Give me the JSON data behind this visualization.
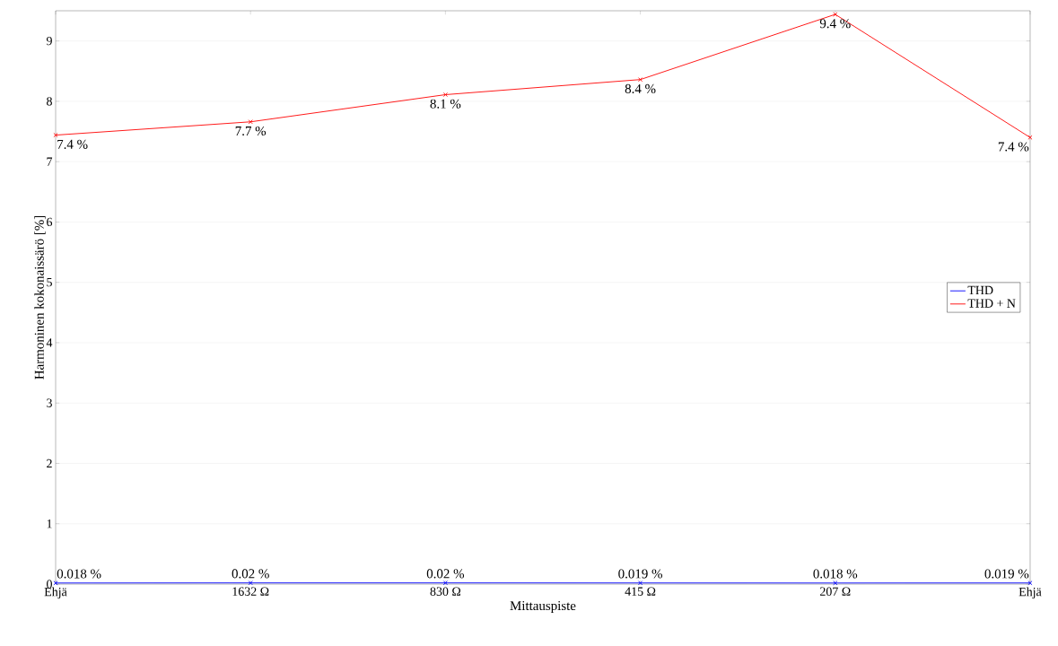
{
  "chart_data": {
    "type": "line",
    "xlabel": "Mittauspiste",
    "ylabel": "Harmoninen kokonaissärö [%]",
    "categories": [
      "Ehjä",
      "1632 Ω",
      "830 Ω",
      "415 Ω",
      "207 Ω",
      "Ehjä"
    ],
    "series": [
      {
        "name": "THD",
        "color": "#0000ff",
        "values": [
          0.018,
          0.02,
          0.02,
          0.019,
          0.018,
          0.019
        ],
        "value_labels": [
          "0.018 %",
          "0.02 %",
          "0.02 %",
          "0.019 %",
          "0.018 %",
          "0.019 %"
        ]
      },
      {
        "name": "THD + N",
        "color": "#ff0000",
        "values": [
          7.44,
          7.66,
          8.11,
          8.36,
          9.44,
          7.4
        ],
        "value_labels": [
          "7.4 %",
          "7.7 %",
          "8.1 %",
          "8.4 %",
          "9.4 %",
          "7.4 %"
        ]
      }
    ],
    "ylim": [
      0,
      9.5
    ],
    "yticks": [
      0,
      1,
      2,
      3,
      4,
      5,
      6,
      7,
      8,
      9
    ],
    "grid": "y",
    "legend": "right",
    "marker": "cross",
    "line_style": "solid"
  }
}
